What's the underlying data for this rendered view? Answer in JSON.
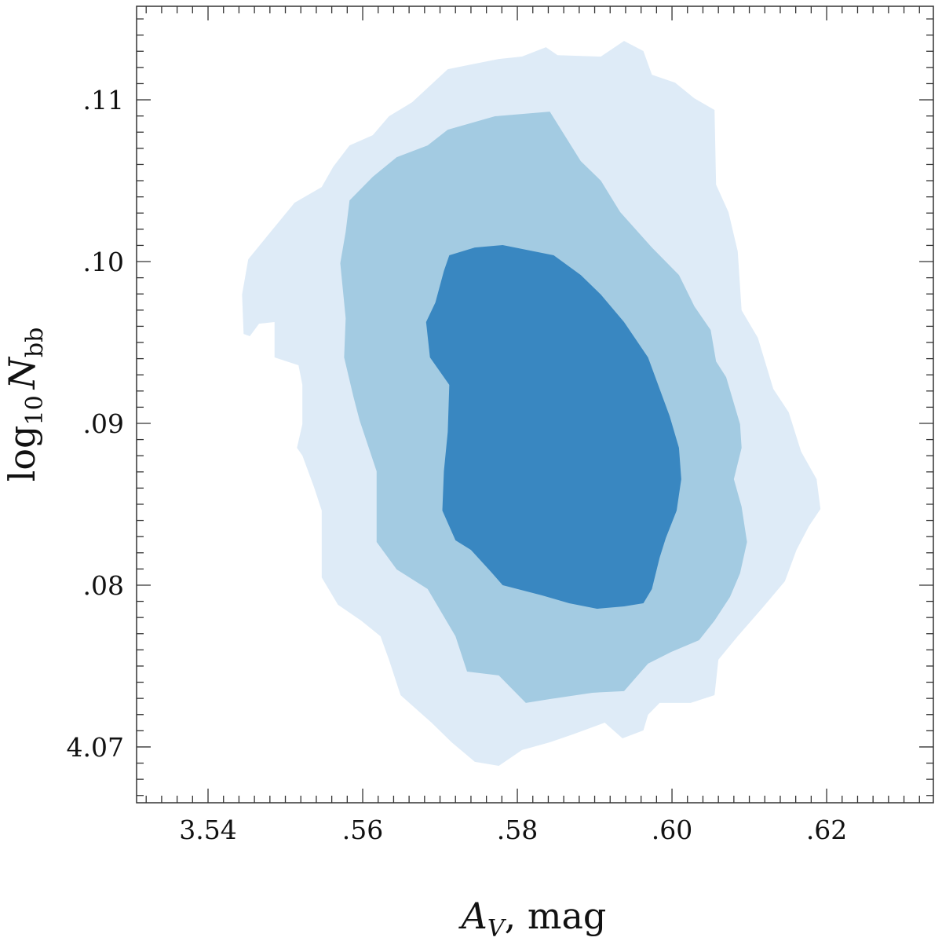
{
  "chart_data": {
    "type": "contour",
    "xlabel": {
      "symbol": "A",
      "sub": "V",
      "rest": ", mag"
    },
    "ylabel": {
      "func": "log",
      "sub": "10",
      "symbol": "N",
      "sub2": "bb"
    },
    "xlim": [
      3.53076,
      3.6338
    ],
    "ylim": [
      4.06655,
      4.11578
    ],
    "xticks": [
      3.54,
      {
        "value": 3.56,
        "label": ".56"
      },
      {
        "value": 3.58,
        "label": ".58"
      },
      {
        "value": 3.6,
        "label": ".60"
      },
      {
        "value": 3.62,
        "label": ".62"
      }
    ],
    "yticks": [
      4.07,
      {
        "value": 4.08,
        "label": ".08"
      },
      {
        "value": 4.09,
        "label": ".09"
      },
      {
        "value": 4.1,
        "label": ".10"
      },
      {
        "value": 4.11,
        "label": ".11"
      }
    ],
    "xminorticks": [
      3.532,
      3.534,
      3.536,
      3.538,
      3.542,
      3.544,
      3.546,
      3.548,
      3.55,
      3.552,
      3.554,
      3.556,
      3.558,
      3.562,
      3.564,
      3.566,
      3.568,
      3.57,
      3.572,
      3.574,
      3.576,
      3.578,
      3.582,
      3.584,
      3.586,
      3.588,
      3.59,
      3.592,
      3.594,
      3.596,
      3.598,
      3.602,
      3.604,
      3.606,
      3.608,
      3.61,
      3.612,
      3.614,
      3.616,
      3.618,
      3.622,
      3.624,
      3.626,
      3.628,
      3.63,
      3.632
    ],
    "yminorticks": [
      4.067,
      4.068,
      4.069,
      4.071,
      4.072,
      4.073,
      4.074,
      4.075,
      4.076,
      4.077,
      4.078,
      4.079,
      4.081,
      4.082,
      4.083,
      4.084,
      4.085,
      4.086,
      4.087,
      4.088,
      4.089,
      4.091,
      4.092,
      4.093,
      4.094,
      4.095,
      4.096,
      4.097,
      4.098,
      4.099,
      4.101,
      4.102,
      4.103,
      4.104,
      4.105,
      4.106,
      4.107,
      4.108,
      4.109,
      4.111,
      4.112,
      4.113,
      4.114,
      4.115
    ],
    "contours": [
      {
        "color": "#deebf7",
        "x": [
          3.5446,
          3.5444,
          3.5452,
          3.5481,
          3.5512,
          3.5547,
          3.5562,
          3.5583,
          3.5613,
          3.5634,
          3.5664,
          3.571,
          3.574,
          3.5776,
          3.5806,
          3.5837,
          3.5852,
          3.5908,
          3.5938,
          3.5963,
          3.5974,
          3.6004,
          3.6029,
          3.6055,
          3.6057,
          3.6073,
          3.6085,
          3.609,
          3.6111,
          3.6131,
          3.6151,
          3.6167,
          3.6187,
          3.6192,
          3.6177,
          3.6161,
          3.6146,
          3.6116,
          3.6085,
          3.606,
          3.6055,
          3.6024,
          3.5984,
          3.5969,
          3.5963,
          3.5936,
          3.5913,
          3.5872,
          3.5842,
          3.5806,
          3.5776,
          3.5745,
          3.5715,
          3.5689,
          3.5649,
          3.5634,
          3.5623,
          3.5598,
          3.5568,
          3.5547,
          3.5547,
          3.5537,
          3.5522,
          3.5515,
          3.5522,
          3.5522,
          3.5517,
          3.5486,
          3.5486,
          3.5466,
          3.5454
        ],
        "y": [
          4.09553,
          4.09796,
          4.10014,
          4.10184,
          4.10364,
          4.10461,
          4.10587,
          4.10718,
          4.10781,
          4.10898,
          4.10985,
          4.11189,
          4.11218,
          4.11252,
          4.11267,
          4.11325,
          4.11276,
          4.11267,
          4.11364,
          4.11301,
          4.11155,
          4.11106,
          4.11009,
          4.10937,
          4.10475,
          4.10306,
          4.10063,
          4.09699,
          4.09529,
          4.09213,
          4.09068,
          4.08825,
          4.08655,
          4.08471,
          4.08364,
          4.08218,
          4.08024,
          4.07854,
          4.07684,
          4.07539,
          4.0732,
          4.07272,
          4.07272,
          4.07199,
          4.07102,
          4.07053,
          4.0715,
          4.07078,
          4.07029,
          4.06981,
          4.06883,
          4.06908,
          4.07029,
          4.0715,
          4.0732,
          4.07539,
          4.07684,
          4.07781,
          4.07879,
          4.08048,
          4.08461,
          4.08607,
          4.08801,
          4.08849,
          4.08995,
          4.09238,
          4.09359,
          4.09408,
          4.09626,
          4.09616,
          4.09539
        ]
      },
      {
        "color": "#a3cbe2",
        "x": [
          3.5583,
          3.5613,
          3.5644,
          3.5684,
          3.571,
          3.5771,
          3.5806,
          3.5842,
          3.5882,
          3.5908,
          3.5933,
          3.5974,
          3.6009,
          3.6029,
          3.605,
          3.6057,
          3.607,
          3.6088,
          3.609,
          3.608,
          3.609,
          3.6097,
          3.6088,
          3.6075,
          3.6055,
          3.6035,
          3.5999,
          3.5969,
          3.5938,
          3.5897,
          3.5842,
          3.5811,
          3.5776,
          3.5735,
          3.572,
          3.5684,
          3.5644,
          3.5618,
          3.5618,
          3.5596,
          3.5588,
          3.5576,
          3.5578,
          3.5571,
          3.5578
        ],
        "y": [
          4.10378,
          4.10524,
          4.10645,
          4.10718,
          4.10815,
          4.10898,
          4.10912,
          4.10927,
          4.10621,
          4.105,
          4.10306,
          4.10087,
          4.09917,
          4.09723,
          4.09577,
          4.09383,
          4.09286,
          4.08995,
          4.08849,
          4.08655,
          4.08485,
          4.08267,
          4.08073,
          4.07927,
          4.07781,
          4.0766,
          4.07587,
          4.07515,
          4.07345,
          4.07335,
          4.07296,
          4.07272,
          4.07442,
          4.07466,
          4.07684,
          4.07976,
          4.08097,
          4.08267,
          4.08704,
          4.09019,
          4.09165,
          4.09408,
          4.0965,
          4.0999,
          4.10184
        ]
      },
      {
        "color": "#3987c1",
        "x": [
          3.5712,
          3.5745,
          3.5781,
          3.5847,
          3.5882,
          3.5908,
          3.5938,
          3.5969,
          3.5984,
          3.5997,
          3.6009,
          3.6012,
          3.6006,
          3.5992,
          3.5984,
          3.5974,
          3.5963,
          3.5938,
          3.5903,
          3.5867,
          3.5832,
          3.5781,
          3.5766,
          3.574,
          3.572,
          3.5703,
          3.5705,
          3.571,
          3.5712,
          3.5687,
          3.5682,
          3.5694,
          3.5705
        ],
        "y": [
          4.10039,
          4.10087,
          4.10102,
          4.10039,
          4.09917,
          4.09796,
          4.09626,
          4.09408,
          4.09213,
          4.09044,
          4.08849,
          4.08655,
          4.08461,
          4.08291,
          4.0817,
          4.07976,
          4.07888,
          4.07869,
          4.07854,
          4.07888,
          4.07937,
          4.08,
          4.08082,
          4.08218,
          4.08277,
          4.08461,
          4.08704,
          4.08947,
          4.09238,
          4.09408,
          4.09626,
          4.09747,
          4.09942
        ]
      }
    ]
  }
}
